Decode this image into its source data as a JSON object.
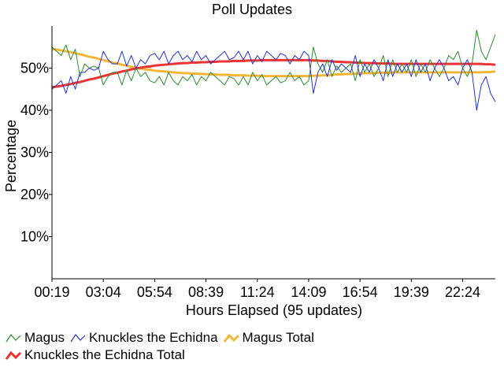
{
  "chart_data": {
    "type": "line",
    "title": "Poll Updates",
    "xlabel": "Hours Elapsed (95 updates)",
    "ylabel": "Percentage",
    "ylim": [
      0,
      60
    ],
    "xlim": [
      0,
      95
    ],
    "y_ticks": [
      10,
      20,
      30,
      40,
      50
    ],
    "y_tick_labels": [
      "10%",
      "20%",
      "30%",
      "40%",
      "50%"
    ],
    "x_ticks": [
      0,
      11,
      22,
      33,
      44,
      55,
      66,
      77,
      88
    ],
    "x_tick_labels": [
      "00:19",
      "03:04",
      "05:54",
      "08:39",
      "11:24",
      "14:09",
      "16:54",
      "19:39",
      "22:24"
    ],
    "grid": false,
    "legend": "bottom",
    "series": [
      {
        "name": "Magus",
        "color": "#2e8b2e",
        "width": 1,
        "values": [
          55,
          54,
          53,
          55.5,
          52,
          54.5,
          48,
          51,
          50,
          50.5,
          50,
          46,
          48,
          49,
          49,
          46,
          49.5,
          47,
          50,
          48,
          49,
          47,
          46.5,
          48,
          46,
          49,
          47,
          46,
          48,
          47,
          48.5,
          46,
          48,
          47,
          49,
          48,
          47,
          46,
          48,
          47.5,
          46,
          48,
          46,
          49,
          47,
          48.5,
          46,
          47,
          48,
          46.5,
          47,
          49,
          47,
          48,
          46,
          47,
          55,
          51,
          49,
          52,
          48,
          50.5,
          49,
          50,
          51,
          47,
          52,
          49,
          51,
          48,
          50,
          53,
          48,
          52,
          49,
          51,
          49,
          52,
          48,
          51,
          49,
          52,
          50,
          48,
          50,
          53,
          52,
          54,
          50,
          48,
          51,
          59,
          54,
          52,
          55,
          58
        ]
      },
      {
        "name": "Knuckles the Echidna",
        "color": "#2233cc",
        "width": 1,
        "values": [
          45,
          46,
          47,
          44,
          48,
          45,
          49,
          49,
          50,
          49.5,
          50,
          54,
          52,
          51,
          51,
          54,
          50.5,
          53,
          50,
          52,
          51,
          53,
          53.5,
          52,
          54,
          51,
          53,
          54,
          52,
          53,
          51.5,
          54,
          52,
          53,
          51,
          52,
          53,
          54,
          52,
          52.5,
          54,
          52,
          54,
          51,
          53,
          51.5,
          54,
          53,
          52,
          53.5,
          53,
          51,
          53,
          52,
          54,
          53,
          44,
          49,
          51,
          48,
          52,
          49.5,
          51,
          50,
          49,
          53,
          48,
          51,
          49,
          52,
          50,
          47,
          52,
          48,
          51,
          49,
          51,
          48,
          52,
          49,
          51,
          47,
          50,
          52,
          50,
          47,
          48,
          46,
          50,
          52,
          49,
          40,
          46,
          48,
          44,
          42
        ]
      },
      {
        "name": "Magus Total",
        "color": "#f5b638",
        "width": 3,
        "values": [
          54.5,
          54.4,
          54.2,
          54.0,
          53.8,
          53.5,
          53.3,
          53.0,
          52.7,
          52.5,
          52.2,
          51.9,
          51.6,
          51.3,
          51.1,
          50.8,
          50.6,
          50.3,
          50.1,
          49.9,
          49.7,
          49.6,
          49.4,
          49.3,
          49.2,
          49.1,
          49.0,
          48.9,
          48.8,
          48.8,
          48.7,
          48.7,
          48.6,
          48.6,
          48.5,
          48.5,
          48.4,
          48.4,
          48.4,
          48.3,
          48.3,
          48.3,
          48.2,
          48.2,
          48.2,
          48.1,
          48.1,
          48.1,
          48.1,
          48.1,
          48.1,
          48.1,
          48.1,
          48.1,
          48.1,
          48.1,
          48.2,
          48.2,
          48.3,
          48.3,
          48.4,
          48.5,
          48.5,
          48.6,
          48.6,
          48.7,
          48.7,
          48.8,
          48.8,
          48.8,
          48.9,
          48.9,
          48.9,
          49.0,
          49.0,
          49.0,
          49.0,
          49.0,
          49.0,
          49.0,
          49.0,
          49.0,
          49.0,
          49.0,
          49.0,
          49.0,
          49.0,
          49.0,
          49.0,
          49.0,
          49.0,
          49.0,
          49.0,
          49.1,
          49.1,
          49.2
        ]
      },
      {
        "name": "Knuckles the Echidna Total",
        "color": "#ee3333",
        "width": 3,
        "values": [
          45.5,
          45.6,
          45.8,
          46.0,
          46.2,
          46.5,
          46.7,
          47.0,
          47.3,
          47.5,
          47.8,
          48.1,
          48.4,
          48.7,
          48.9,
          49.2,
          49.4,
          49.7,
          49.9,
          50.1,
          50.3,
          50.4,
          50.6,
          50.7,
          50.8,
          50.9,
          51.0,
          51.1,
          51.2,
          51.2,
          51.3,
          51.3,
          51.4,
          51.4,
          51.5,
          51.5,
          51.6,
          51.6,
          51.6,
          51.7,
          51.7,
          51.7,
          51.8,
          51.8,
          51.8,
          51.9,
          51.9,
          51.9,
          51.9,
          51.9,
          51.9,
          51.9,
          51.9,
          51.9,
          51.9,
          51.9,
          51.8,
          51.8,
          51.7,
          51.7,
          51.6,
          51.5,
          51.5,
          51.4,
          51.4,
          51.3,
          51.3,
          51.2,
          51.2,
          51.2,
          51.1,
          51.1,
          51.1,
          51.0,
          51.0,
          51.0,
          51.0,
          51.0,
          51.0,
          51.0,
          51.0,
          51.0,
          51.0,
          51.0,
          51.0,
          51.0,
          51.0,
          51.0,
          51.0,
          51.0,
          51.0,
          51.0,
          51.0,
          50.9,
          50.9,
          50.8
        ]
      }
    ]
  }
}
